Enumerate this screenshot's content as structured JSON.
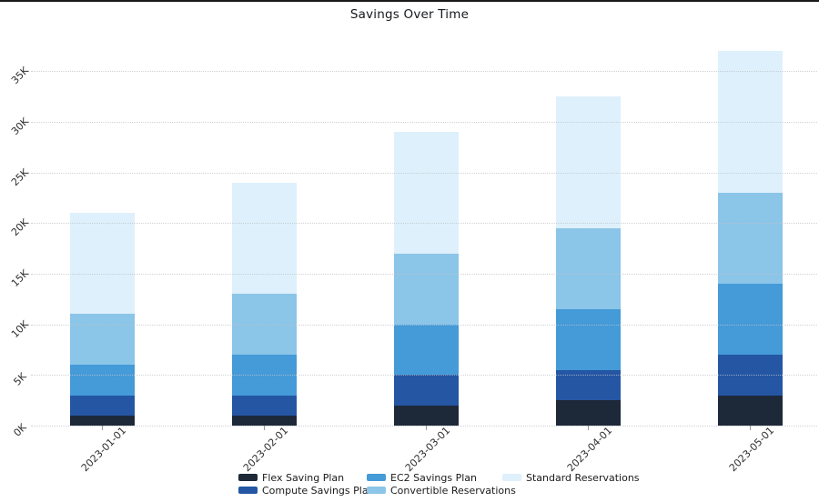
{
  "title": "Savings Over Time",
  "chart_data": {
    "type": "bar",
    "stacked": true,
    "title": "Savings Over Time",
    "categories": [
      "2023-01-01",
      "2023-02-01",
      "2023-03-01",
      "2023-04-01",
      "2023-05-01"
    ],
    "series": [
      {
        "name": "Flex Saving Plan",
        "color": "#1d2939",
        "values": [
          1000,
          1000,
          2000,
          2500,
          3000
        ]
      },
      {
        "name": "Compute Savings Plan",
        "color": "#2456a4",
        "values": [
          2000,
          2000,
          3000,
          3000,
          4000
        ]
      },
      {
        "name": "EC2 Savings Plan",
        "color": "#459ad8",
        "values": [
          3000,
          4000,
          5000,
          6000,
          7000
        ]
      },
      {
        "name": "Convertible Reservations",
        "color": "#8bc5e8",
        "values": [
          5000,
          6000,
          7000,
          8000,
          9000
        ]
      },
      {
        "name": "Standard Reservations",
        "color": "#def0fb",
        "values": [
          10000,
          11000,
          12000,
          13000,
          14000
        ]
      }
    ],
    "totals": [
      21000,
      24000,
      29000,
      32500,
      37000
    ],
    "xlabel": "",
    "ylabel": "",
    "ylim": [
      0,
      37500
    ],
    "yticks": [
      "0K",
      "5K",
      "10K",
      "15K",
      "20K",
      "25K",
      "30K",
      "35K"
    ],
    "ytick_values": [
      0,
      5000,
      10000,
      15000,
      20000,
      25000,
      30000,
      35000
    ],
    "grid": "horizontal-dotted",
    "legend_position": "bottom"
  },
  "colors": {
    "background": "#ffffff",
    "gridline": "#c5cacf",
    "axis_text": "#2f2f2f",
    "title_text": "#15181c",
    "top_border": "#1a1a1a"
  }
}
